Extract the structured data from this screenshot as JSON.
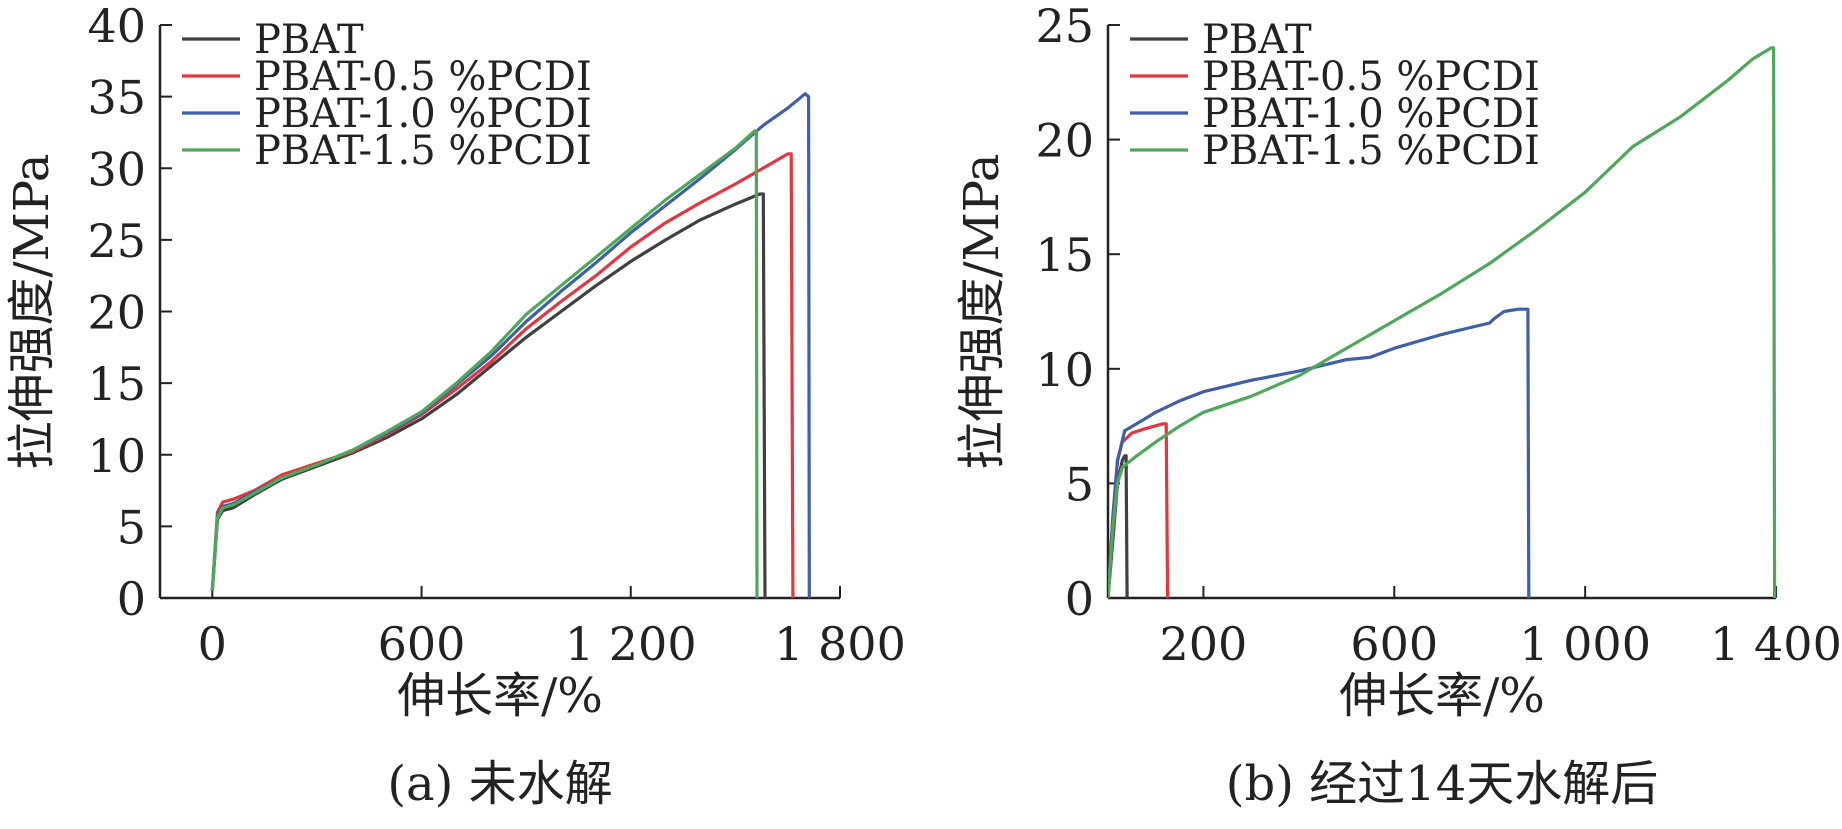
{
  "chart_data": [
    {
      "type": "line",
      "caption": "(a) 未水解",
      "xlabel": "伸长率/%",
      "ylabel": "拉伸强度/MPa",
      "xlim": [
        -150,
        1800
      ],
      "ylim": [
        0,
        40
      ],
      "xticks": [
        0,
        600,
        1200,
        1800
      ],
      "xtick_labels": [
        "0",
        "600",
        "1 200",
        "1 800"
      ],
      "yticks": [
        0,
        5,
        10,
        15,
        20,
        25,
        30,
        35,
        40
      ],
      "ytick_labels": [
        "0",
        "5",
        "10",
        "15",
        "20",
        "25",
        "30",
        "35",
        "40"
      ],
      "grid": false,
      "legend": "top-left",
      "series": [
        {
          "name": "PBAT",
          "color": "#404040",
          "points": [
            [
              0,
              0.5
            ],
            [
              15,
              5.5
            ],
            [
              30,
              6.1
            ],
            [
              60,
              6.3
            ],
            [
              120,
              7.2
            ],
            [
              200,
              8.3
            ],
            [
              300,
              9.2
            ],
            [
              400,
              10.1
            ],
            [
              500,
              11.2
            ],
            [
              600,
              12.5
            ],
            [
              700,
              14.2
            ],
            [
              800,
              16.2
            ],
            [
              900,
              18.2
            ],
            [
              1000,
              20.0
            ],
            [
              1100,
              21.8
            ],
            [
              1200,
              23.5
            ],
            [
              1300,
              25.0
            ],
            [
              1400,
              26.4
            ],
            [
              1500,
              27.5
            ],
            [
              1570,
              28.2
            ],
            [
              1580,
              28.2
            ],
            [
              1585,
              0
            ]
          ]
        },
        {
          "name": "PBAT-0.5 %PCDI",
          "color": "#e3363f",
          "points": [
            [
              0,
              0.5
            ],
            [
              15,
              6.0
            ],
            [
              30,
              6.7
            ],
            [
              60,
              6.9
            ],
            [
              120,
              7.5
            ],
            [
              200,
              8.6
            ],
            [
              300,
              9.4
            ],
            [
              400,
              10.2
            ],
            [
              500,
              11.4
            ],
            [
              600,
              12.8
            ],
            [
              700,
              14.6
            ],
            [
              800,
              16.5
            ],
            [
              900,
              18.8
            ],
            [
              1000,
              20.7
            ],
            [
              1100,
              22.5
            ],
            [
              1200,
              24.5
            ],
            [
              1300,
              26.2
            ],
            [
              1400,
              27.6
            ],
            [
              1500,
              28.9
            ],
            [
              1600,
              30.3
            ],
            [
              1650,
              31.0
            ],
            [
              1660,
              31.0
            ],
            [
              1665,
              0
            ]
          ]
        },
        {
          "name": "PBAT-1.0 %PCDI",
          "color": "#3f5fa8",
          "points": [
            [
              0,
              0.5
            ],
            [
              15,
              5.8
            ],
            [
              30,
              6.4
            ],
            [
              60,
              6.6
            ],
            [
              120,
              7.4
            ],
            [
              200,
              8.4
            ],
            [
              300,
              9.3
            ],
            [
              400,
              10.3
            ],
            [
              500,
              11.5
            ],
            [
              600,
              12.9
            ],
            [
              700,
              14.9
            ],
            [
              800,
              16.9
            ],
            [
              900,
              19.3
            ],
            [
              1000,
              21.4
            ],
            [
              1100,
              23.4
            ],
            [
              1200,
              25.5
            ],
            [
              1300,
              27.4
            ],
            [
              1400,
              29.3
            ],
            [
              1500,
              31.3
            ],
            [
              1580,
              33.0
            ],
            [
              1650,
              34.2
            ],
            [
              1700,
              35.2
            ],
            [
              1710,
              35.0
            ],
            [
              1712,
              0
            ]
          ]
        },
        {
          "name": "PBAT-1.5 %PCDI",
          "color": "#4fa85a",
          "points": [
            [
              0,
              0.5
            ],
            [
              15,
              5.6
            ],
            [
              30,
              6.3
            ],
            [
              60,
              6.5
            ],
            [
              120,
              7.3
            ],
            [
              200,
              8.4
            ],
            [
              300,
              9.3
            ],
            [
              400,
              10.3
            ],
            [
              500,
              11.6
            ],
            [
              600,
              13.0
            ],
            [
              700,
              15.0
            ],
            [
              800,
              17.2
            ],
            [
              900,
              19.8
            ],
            [
              1000,
              21.8
            ],
            [
              1100,
              23.8
            ],
            [
              1200,
              25.8
            ],
            [
              1300,
              27.8
            ],
            [
              1400,
              29.6
            ],
            [
              1500,
              31.4
            ],
            [
              1555,
              32.6
            ],
            [
              1560,
              32.6
            ],
            [
              1562,
              0
            ]
          ]
        }
      ]
    },
    {
      "type": "line",
      "caption": "(b) 经过14天水解后",
      "xlabel": "伸长率/%",
      "ylabel": "拉伸强度/MPa",
      "xlim": [
        0,
        1400
      ],
      "ylim": [
        0,
        25
      ],
      "xticks": [
        200,
        600,
        1000,
        1400
      ],
      "xtick_labels": [
        "200",
        "600",
        "1 000",
        "1 400"
      ],
      "yticks": [
        0,
        5,
        10,
        15,
        20,
        25
      ],
      "ytick_labels": [
        "0",
        "5",
        "10",
        "15",
        "20",
        "25"
      ],
      "grid": false,
      "legend": "top-left",
      "series": [
        {
          "name": "PBAT",
          "color": "#404040",
          "points": [
            [
              0,
              0
            ],
            [
              10,
              2.5
            ],
            [
              20,
              5.0
            ],
            [
              30,
              6.0
            ],
            [
              35,
              6.2
            ],
            [
              38,
              6.2
            ],
            [
              40,
              0
            ]
          ]
        },
        {
          "name": "PBAT-0.5 %PCDI",
          "color": "#e3363f",
          "points": [
            [
              0,
              0
            ],
            [
              10,
              3.5
            ],
            [
              20,
              6.0
            ],
            [
              30,
              6.8
            ],
            [
              50,
              7.2
            ],
            [
              80,
              7.4
            ],
            [
              115,
              7.6
            ],
            [
              122,
              7.6
            ],
            [
              125,
              0
            ]
          ]
        },
        {
          "name": "PBAT-1.0 %PCDI",
          "color": "#3f5fa8",
          "points": [
            [
              0,
              0
            ],
            [
              10,
              3.5
            ],
            [
              20,
              6.0
            ],
            [
              35,
              7.3
            ],
            [
              60,
              7.6
            ],
            [
              100,
              8.1
            ],
            [
              150,
              8.6
            ],
            [
              200,
              9.0
            ],
            [
              300,
              9.5
            ],
            [
              400,
              9.9
            ],
            [
              500,
              10.4
            ],
            [
              550,
              10.5
            ],
            [
              600,
              10.9
            ],
            [
              700,
              11.5
            ],
            [
              760,
              11.8
            ],
            [
              800,
              12.0
            ],
            [
              810,
              12.2
            ],
            [
              830,
              12.5
            ],
            [
              860,
              12.6
            ],
            [
              880,
              12.6
            ],
            [
              882,
              0
            ]
          ]
        },
        {
          "name": "PBAT-1.5 %PCDI",
          "color": "#4fa85a",
          "points": [
            [
              0,
              0
            ],
            [
              10,
              3.0
            ],
            [
              20,
              5.0
            ],
            [
              30,
              5.7
            ],
            [
              60,
              6.2
            ],
            [
              100,
              6.8
            ],
            [
              150,
              7.5
            ],
            [
              200,
              8.1
            ],
            [
              300,
              8.8
            ],
            [
              400,
              9.7
            ],
            [
              500,
              10.9
            ],
            [
              600,
              12.1
            ],
            [
              700,
              13.3
            ],
            [
              800,
              14.6
            ],
            [
              900,
              16.1
            ],
            [
              1000,
              17.7
            ],
            [
              1050,
              18.7
            ],
            [
              1100,
              19.7
            ],
            [
              1200,
              21.0
            ],
            [
              1300,
              22.6
            ],
            [
              1350,
              23.5
            ],
            [
              1390,
              24.0
            ],
            [
              1395,
              24.0
            ],
            [
              1397,
              0
            ]
          ]
        }
      ]
    }
  ]
}
